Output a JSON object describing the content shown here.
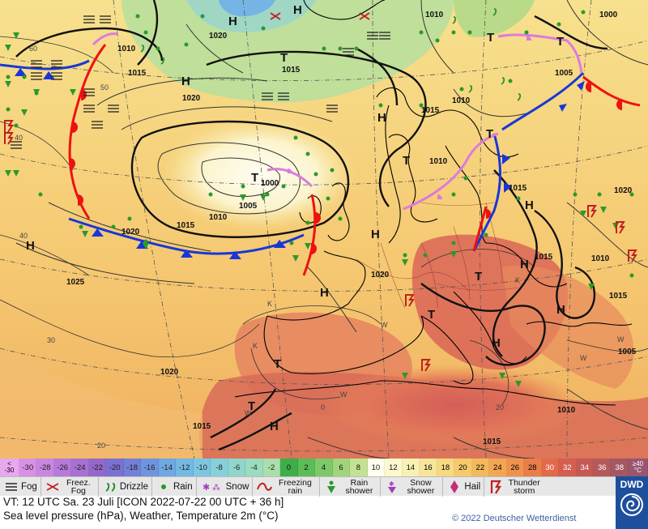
{
  "scale": {
    "left_top": "<",
    "left_bottom": "-30",
    "values": [
      "-30",
      "-28",
      "-26",
      "-24",
      "-22",
      "-20",
      "-18",
      "-16",
      "-14",
      "-12",
      "-10",
      "-8",
      "-6",
      "-4",
      "-2",
      "0",
      "2",
      "4",
      "6",
      "8",
      "10",
      "12",
      "14",
      "16",
      "18",
      "20",
      "22",
      "24",
      "26",
      "28",
      "30",
      "32",
      "34",
      "36",
      "38"
    ],
    "colors": [
      "#d990e6",
      "#c987e0",
      "#b77ad9",
      "#a671d2",
      "#9468cb",
      "#7c70d2",
      "#7280d8",
      "#6f95de",
      "#6fa8e2",
      "#74b8e4",
      "#7cc6e2",
      "#85d0d9",
      "#90d6cc",
      "#9adcbd",
      "#a8dfac",
      "#3fae4a",
      "#5cbd58",
      "#7dc968",
      "#a1d57c",
      "#c4e294",
      "#fffff0",
      "#fbf8cd",
      "#f9f0b4",
      "#f8e59a",
      "#f7d982",
      "#f6ca6c",
      "#f4b95c",
      "#f2a653",
      "#ef924d",
      "#ea7d4a",
      "#e26a4a",
      "#d45e50",
      "#c55a55",
      "#b4595b",
      "#a45862"
    ],
    "right_top": "≥40",
    "right_bottom": "°C"
  },
  "legend": {
    "fog": "Fog",
    "freezing_fog": "Freez. Fog",
    "drizzle": "Drizzle",
    "rain": "Rain",
    "snow": "Snow",
    "freezing_rain": "Freezing rain",
    "rain_shower": "Rain shower",
    "snow_shower": "Snow shower",
    "hail": "Hail",
    "thunderstorm": "Thunder storm"
  },
  "logo": "DWD",
  "info": {
    "valid_time": "VT: 12 UTC Sa.   23 Juli [ICON 2022-07-22   00 UTC + 36 h]",
    "description": "Sea level pressure (hPa), Weather, Temperature 2m (°C)"
  },
  "copyright": "© 2022 Deutscher Wetterdienst",
  "map": {
    "isobar_labels": [
      "1010",
      "1015",
      "1020",
      "1020",
      "1000",
      "1005",
      "1010",
      "1015",
      "1020",
      "1025",
      "1020",
      "1015",
      "1010",
      "1015",
      "1010",
      "1005",
      "1000",
      "1015",
      "1010",
      "1015",
      "1020",
      "1015",
      "1010",
      "1005",
      "1010",
      "1015",
      "1020",
      "1015"
    ],
    "pressure_centers": [
      "H",
      "H",
      "H",
      "H",
      "H",
      "H",
      "H",
      "H",
      "H",
      "H",
      "H",
      "H",
      "T",
      "T",
      "T",
      "T",
      "T",
      "T",
      "T",
      "T",
      "T",
      "T"
    ],
    "temp_labels": [
      "60",
      "50",
      "40",
      "40",
      "30",
      "20",
      "K",
      "K",
      "W",
      "W",
      "W",
      "K",
      "W",
      "0",
      "20",
      "W"
    ]
  }
}
